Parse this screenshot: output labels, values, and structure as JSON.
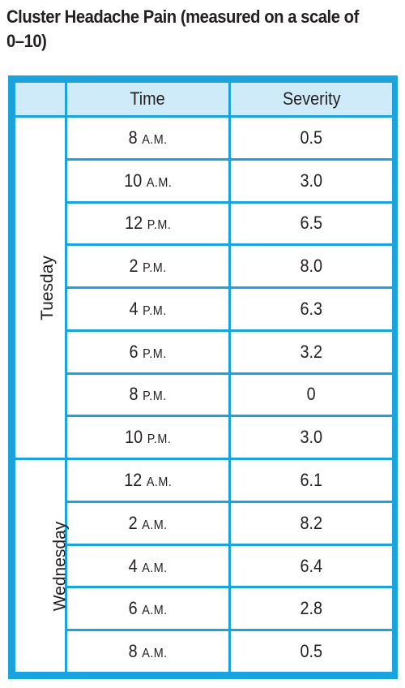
{
  "title": "Cluster Headache Pain (measured on a scale of 0–10)",
  "chart_data": {
    "type": "table",
    "title": "Cluster Headache Pain (measured on a scale of 0–10)",
    "columns": [
      "Time",
      "Severity"
    ],
    "groups": [
      {
        "day": "Tuesday",
        "rows": [
          {
            "time": "8",
            "period": "A.M.",
            "severity": "0.5"
          },
          {
            "time": "10",
            "period": "A.M.",
            "severity": "3.0"
          },
          {
            "time": "12",
            "period": "P.M.",
            "severity": "6.5"
          },
          {
            "time": "2",
            "period": "P.M.",
            "severity": "8.0"
          },
          {
            "time": "4",
            "period": "P.M.",
            "severity": "6.3"
          },
          {
            "time": "6",
            "period": "P.M.",
            "severity": "3.2"
          },
          {
            "time": "8",
            "period": "P.M.",
            "severity": "0"
          },
          {
            "time": "10",
            "period": "P.M.",
            "severity": "3.0"
          }
        ]
      },
      {
        "day": "Wednesday",
        "rows": [
          {
            "time": "12",
            "period": "A.M.",
            "severity": "6.1"
          },
          {
            "time": "2",
            "period": "A.M.",
            "severity": "8.2"
          },
          {
            "time": "4",
            "period": "A.M.",
            "severity": "6.4"
          },
          {
            "time": "6",
            "period": "A.M.",
            "severity": "2.8"
          },
          {
            "time": "8",
            "period": "A.M.",
            "severity": "0.5"
          }
        ]
      }
    ]
  }
}
